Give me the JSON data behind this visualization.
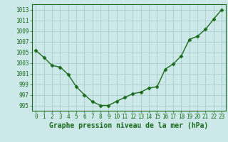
{
  "x": [
    0,
    1,
    2,
    3,
    4,
    5,
    6,
    7,
    8,
    9,
    10,
    11,
    12,
    13,
    14,
    15,
    16,
    17,
    18,
    19,
    20,
    21,
    22,
    23
  ],
  "y": [
    1005.3,
    1004.0,
    1002.5,
    1002.2,
    1000.8,
    998.5,
    997.0,
    995.7,
    995.0,
    995.0,
    995.8,
    996.5,
    997.2,
    997.5,
    998.3,
    998.5,
    1001.8,
    1002.8,
    1004.3,
    1007.4,
    1008.0,
    1009.3,
    1011.2,
    1013.0
  ],
  "line_color": "#1a6b1a",
  "marker": "D",
  "markersize": 2.5,
  "bg_color": "#cce8e8",
  "grid_color": "#aacccc",
  "xlabel": "Graphe pression niveau de la mer (hPa)",
  "xlabel_fontsize": 7,
  "xlim": [
    -0.5,
    23.5
  ],
  "ylim": [
    994,
    1014
  ],
  "yticks": [
    995,
    997,
    999,
    1001,
    1003,
    1005,
    1007,
    1009,
    1011,
    1013
  ],
  "xticks": [
    0,
    1,
    2,
    3,
    4,
    5,
    6,
    7,
    8,
    9,
    10,
    11,
    12,
    13,
    14,
    15,
    16,
    17,
    18,
    19,
    20,
    21,
    22,
    23
  ],
  "tick_label_fontsize": 5.5,
  "tick_color": "#1a6b1a",
  "linewidth": 1.0,
  "spine_color": "#1a6b1a"
}
